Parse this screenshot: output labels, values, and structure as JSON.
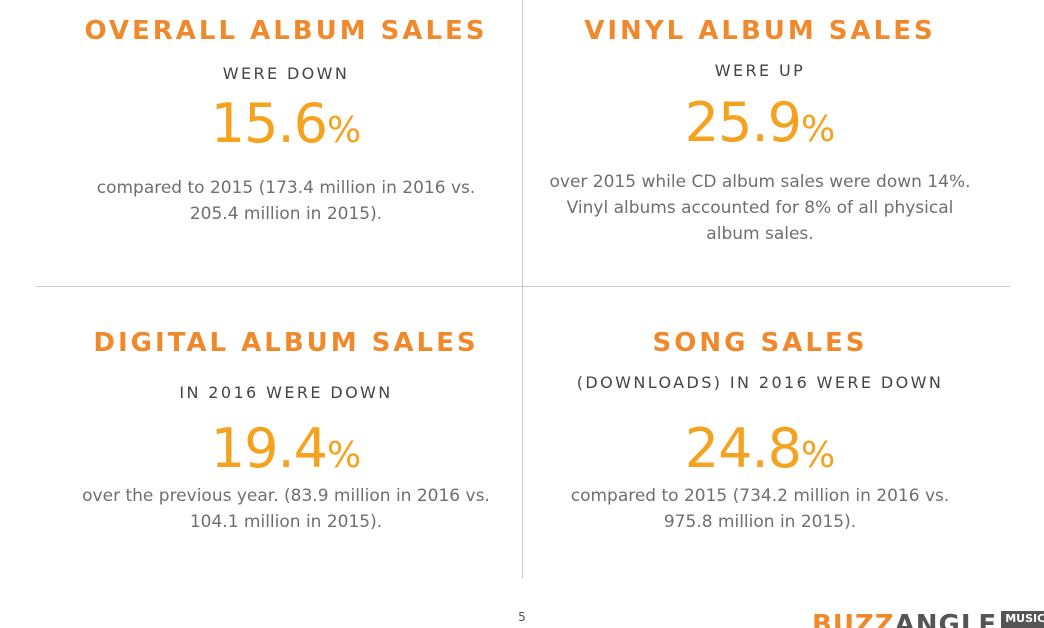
{
  "page_number": "5",
  "colors": {
    "heading_orange": "#f0892c",
    "big_number_orange": "#f5a21f",
    "subheading_gray": "#444444",
    "body_gray": "#6f6f6f",
    "divider_gray": "#c8c8c8"
  },
  "panels": {
    "overall": {
      "heading": "OVERALL ALBUM SALES",
      "subheading": "WERE DOWN",
      "value": "15.6",
      "unit": "%",
      "desc": [
        "compared to 2015 (173.4 million in 2016 vs.",
        "205.4 million in 2015)."
      ]
    },
    "vinyl": {
      "heading": "VINYL ALBUM SALES",
      "subheading": "WERE UP",
      "value": "25.9",
      "unit": "%",
      "desc": [
        "over 2015 while CD album sales were down 14%.",
        "Vinyl albums accounted for 8% of all physical",
        "album sales."
      ]
    },
    "digital": {
      "heading": "DIGITAL ALBUM SALES",
      "subheading": "IN 2016 WERE DOWN",
      "value": "19.4",
      "unit": "%",
      "desc": [
        "over the previous year. (83.9 million in 2016 vs.",
        "104.1 million in 2015)."
      ]
    },
    "song": {
      "heading": "SONG SALES",
      "subheading": "(DOWNLOADS) IN 2016 WERE DOWN",
      "value": "24.8",
      "unit": "%",
      "desc": [
        "compared to 2015 (734.2 million in 2016 vs.",
        "975.8 million in 2015)."
      ]
    }
  },
  "logo": {
    "part1": "BUZZ",
    "part2": "ANGLE",
    "badge": "MUSIC"
  }
}
